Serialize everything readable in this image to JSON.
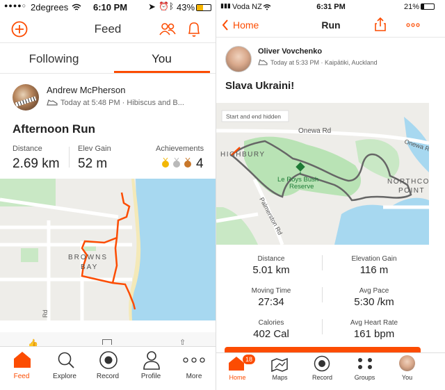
{
  "accent": "#fc4c02",
  "left": {
    "status": {
      "carrier": "2degrees",
      "time": "6:10 PM",
      "battery": "43%"
    },
    "header": {
      "title": "Feed"
    },
    "tabs": [
      {
        "label": "Following"
      },
      {
        "label": "You"
      }
    ],
    "activity": {
      "athlete": "Andrew McPherson",
      "meta": "Today at 5:48 PM · Hibiscus and B...",
      "title": "Afternoon Run",
      "stats": [
        {
          "label": "Distance",
          "value": "2.69 km"
        },
        {
          "label": "Elev Gain",
          "value": "52 m"
        },
        {
          "label": "Achievements",
          "value": "4"
        }
      ],
      "map_labels": {
        "suburb_1": "BROWNS",
        "suburb_2": "BAY",
        "road": "Rd"
      }
    },
    "nav": [
      {
        "label": "Feed",
        "icon": "home-icon"
      },
      {
        "label": "Explore",
        "icon": "search-icon"
      },
      {
        "label": "Record",
        "icon": "record-icon"
      },
      {
        "label": "Profile",
        "icon": "person-icon"
      },
      {
        "label": "More",
        "icon": "more-icon"
      }
    ]
  },
  "right": {
    "status": {
      "carrier": "Voda NZ",
      "time": "6:31 PM",
      "battery": "21%"
    },
    "header": {
      "back": "Home",
      "title": "Run"
    },
    "activity": {
      "athlete": "Oliver Vovchenko",
      "meta": "Today at 5:33 PM · Kaipātiki, Auckland",
      "title": "Slava Ukraini!",
      "map_labels": {
        "hidden_note": "Start and end hidden",
        "road_1": "Onewa Rd",
        "road_2": "Onewa R",
        "suburb_1": "HIGHBURY",
        "reserve_1": "Le Roys Bush",
        "reserve_2": "Reserve",
        "road_3": "Palmerston Rd",
        "suburb_2": "NORTHCO",
        "suburb_3": "POINT"
      },
      "stats": [
        {
          "label": "Distance",
          "value": "5.01 km"
        },
        {
          "label": "Elevation Gain",
          "value": "116 m"
        },
        {
          "label": "Moving Time",
          "value": "27:34"
        },
        {
          "label": "Avg Pace",
          "value": "5:30 /km"
        },
        {
          "label": "Calories",
          "value": "402 Cal"
        },
        {
          "label": "Avg Heart Rate",
          "value": "161 bpm"
        }
      ]
    },
    "nav": [
      {
        "label": "Home",
        "icon": "home-icon",
        "badge": "18"
      },
      {
        "label": "Maps",
        "icon": "map-icon"
      },
      {
        "label": "Record",
        "icon": "record-icon"
      },
      {
        "label": "Groups",
        "icon": "groups-icon"
      },
      {
        "label": "You",
        "icon": "avatar"
      }
    ]
  }
}
